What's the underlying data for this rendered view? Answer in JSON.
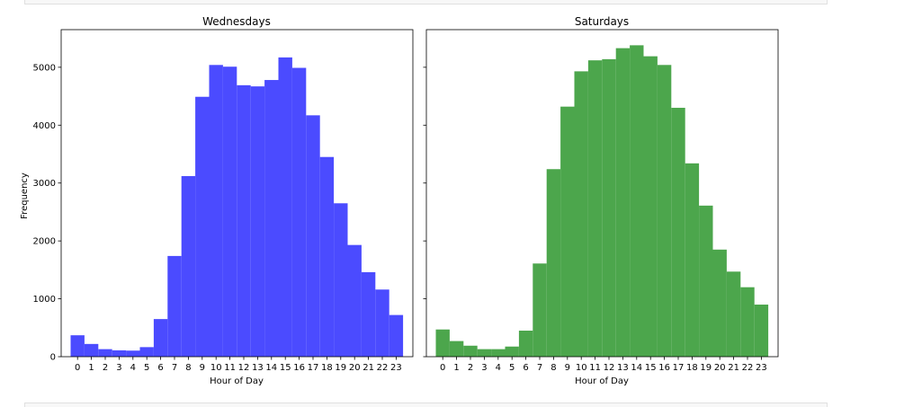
{
  "chart_data": [
    {
      "type": "bar",
      "title": "Wednesdays",
      "xlabel": "Hour of Day",
      "ylabel": "Frequency",
      "color": "#4b4bff",
      "categories": [
        "0",
        "1",
        "2",
        "3",
        "4",
        "5",
        "6",
        "7",
        "8",
        "9",
        "10",
        "11",
        "12",
        "13",
        "14",
        "15",
        "16",
        "17",
        "18",
        "19",
        "20",
        "21",
        "22",
        "23"
      ],
      "values": [
        370,
        220,
        130,
        110,
        105,
        165,
        650,
        1740,
        3120,
        4490,
        5040,
        5010,
        4690,
        4670,
        4780,
        5170,
        4990,
        4170,
        3450,
        2650,
        1930,
        1460,
        1160,
        720
      ],
      "ylim": [
        0,
        5650
      ],
      "yticks": [
        0,
        1000,
        2000,
        3000,
        4000,
        5000
      ],
      "grid": false
    },
    {
      "type": "bar",
      "title": "Saturdays",
      "xlabel": "Hour of Day",
      "ylabel": "",
      "color": "#4ca64c",
      "categories": [
        "0",
        "1",
        "2",
        "3",
        "4",
        "5",
        "6",
        "7",
        "8",
        "9",
        "10",
        "11",
        "12",
        "13",
        "14",
        "15",
        "16",
        "17",
        "18",
        "19",
        "20",
        "21",
        "22",
        "23"
      ],
      "values": [
        470,
        270,
        190,
        130,
        130,
        175,
        450,
        1610,
        3240,
        4320,
        4930,
        5120,
        5140,
        5330,
        5380,
        5190,
        5040,
        4300,
        3340,
        2610,
        1850,
        1470,
        1200,
        900
      ],
      "ylim": [
        0,
        5650
      ],
      "yticks": [
        0,
        1000,
        2000,
        3000,
        4000,
        5000
      ],
      "grid": false
    }
  ]
}
